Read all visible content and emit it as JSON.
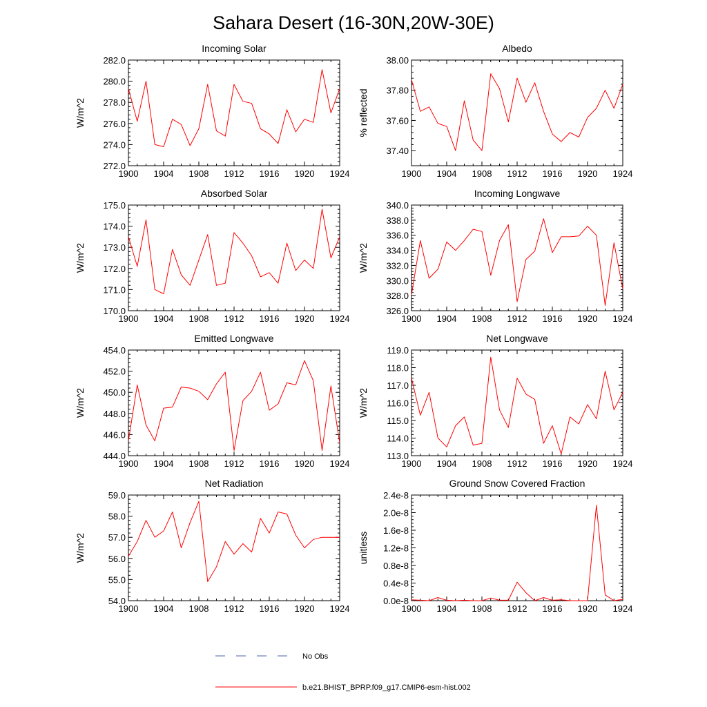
{
  "figure_title": "Sahara Desert (16-30N,20W-30E)",
  "legend": [
    {
      "label": "No Obs",
      "color": "#4a5fa8",
      "style": "dashed"
    },
    {
      "label": "b.e21.BHIST_BPRP.f09_g17.CMIP6-esm-hist.002",
      "color": "#ff0000",
      "style": "solid"
    }
  ],
  "colors": {
    "series": "#ff0000",
    "axis": "#000000"
  },
  "chart_data": [
    {
      "type": "line",
      "title": "Incoming Solar",
      "ylabel": "W/m^2",
      "xlim": [
        1900,
        1924
      ],
      "ylim": [
        272,
        282
      ],
      "x_ticks": [
        1900,
        1904,
        1908,
        1912,
        1916,
        1920,
        1924
      ],
      "x_tick_labels": [
        "1900",
        "1904",
        "1908",
        "1912",
        "1916",
        "1920",
        "1924"
      ],
      "y_ticks": [
        272,
        274,
        276,
        278,
        280,
        282
      ],
      "y_tick_labels": [
        "272.0",
        "274.0",
        "276.0",
        "278.0",
        "280.0",
        "282.0"
      ],
      "x": [
        1900,
        1901,
        1902,
        1903,
        1904,
        1905,
        1906,
        1907,
        1908,
        1909,
        1910,
        1911,
        1912,
        1913,
        1914,
        1915,
        1916,
        1917,
        1918,
        1919,
        1920,
        1921,
        1922,
        1923,
        1924
      ],
      "series": [
        {
          "name": "b.e21.BHIST_BPRP.f09_g17.CMIP6-esm-hist.002",
          "values": [
            279.3,
            276.2,
            280.0,
            274.0,
            273.8,
            276.4,
            275.9,
            273.9,
            275.5,
            279.7,
            275.3,
            274.8,
            279.7,
            278.1,
            277.9,
            275.5,
            275.0,
            274.1,
            277.3,
            275.2,
            276.4,
            276.1,
            281.1,
            277.0,
            279.3
          ]
        }
      ]
    },
    {
      "type": "line",
      "title": "Albedo",
      "ylabel": "% reflected",
      "xlim": [
        1900,
        1924
      ],
      "ylim": [
        37.3,
        38.0
      ],
      "x_ticks": [
        1900,
        1904,
        1908,
        1912,
        1916,
        1920,
        1924
      ],
      "x_tick_labels": [
        "1900",
        "1904",
        "1908",
        "1912",
        "1916",
        "1920",
        "1924"
      ],
      "y_ticks": [
        37.4,
        37.6,
        37.8,
        38.0
      ],
      "y_tick_labels": [
        "37.40",
        "37.60",
        "37.80",
        "38.00"
      ],
      "x": [
        1900,
        1901,
        1902,
        1903,
        1904,
        1905,
        1906,
        1907,
        1908,
        1909,
        1910,
        1911,
        1912,
        1913,
        1914,
        1915,
        1916,
        1917,
        1918,
        1919,
        1920,
        1921,
        1922,
        1923,
        1924
      ],
      "series": [
        {
          "name": "b.e21.BHIST_BPRP.f09_g17.CMIP6-esm-hist.002",
          "values": [
            37.87,
            37.66,
            37.69,
            37.58,
            37.56,
            37.4,
            37.73,
            37.47,
            37.4,
            37.91,
            37.81,
            37.59,
            37.88,
            37.72,
            37.85,
            37.66,
            37.51,
            37.46,
            37.52,
            37.49,
            37.62,
            37.68,
            37.8,
            37.68,
            37.84
          ]
        }
      ]
    },
    {
      "type": "line",
      "title": "Absorbed Solar",
      "ylabel": "W/m^2",
      "xlim": [
        1900,
        1924
      ],
      "ylim": [
        170,
        175
      ],
      "x_ticks": [
        1900,
        1904,
        1908,
        1912,
        1916,
        1920,
        1924
      ],
      "x_tick_labels": [
        "1900",
        "1904",
        "1908",
        "1912",
        "1916",
        "1920",
        "1924"
      ],
      "y_ticks": [
        170,
        171,
        172,
        173,
        174,
        175
      ],
      "y_tick_labels": [
        "170.0",
        "171.0",
        "172.0",
        "173.0",
        "174.0",
        "175.0"
      ],
      "x": [
        1900,
        1901,
        1902,
        1903,
        1904,
        1905,
        1906,
        1907,
        1908,
        1909,
        1910,
        1911,
        1912,
        1913,
        1914,
        1915,
        1916,
        1917,
        1918,
        1919,
        1920,
        1921,
        1922,
        1923,
        1924
      ],
      "series": [
        {
          "name": "b.e21.BHIST_BPRP.f09_g17.CMIP6-esm-hist.002",
          "values": [
            173.5,
            172.1,
            174.3,
            171.0,
            170.8,
            172.9,
            171.7,
            171.2,
            172.4,
            173.6,
            171.2,
            171.3,
            173.7,
            173.2,
            172.6,
            171.6,
            171.8,
            171.3,
            173.2,
            171.9,
            172.4,
            172.0,
            174.8,
            172.5,
            173.5
          ]
        }
      ]
    },
    {
      "type": "line",
      "title": "Incoming Longwave",
      "ylabel": "W/m^2",
      "xlim": [
        1900,
        1924
      ],
      "ylim": [
        326,
        340
      ],
      "x_ticks": [
        1900,
        1904,
        1908,
        1912,
        1916,
        1920,
        1924
      ],
      "x_tick_labels": [
        "1900",
        "1904",
        "1908",
        "1912",
        "1916",
        "1920",
        "1924"
      ],
      "y_ticks": [
        326,
        328,
        330,
        332,
        334,
        336,
        338,
        340
      ],
      "y_tick_labels": [
        "326.0",
        "328.0",
        "330.0",
        "332.0",
        "334.0",
        "336.0",
        "338.0",
        "340.0"
      ],
      "x": [
        1900,
        1901,
        1902,
        1903,
        1904,
        1905,
        1906,
        1907,
        1908,
        1909,
        1910,
        1911,
        1912,
        1913,
        1914,
        1915,
        1916,
        1917,
        1918,
        1919,
        1920,
        1921,
        1922,
        1923,
        1924
      ],
      "series": [
        {
          "name": "b.e21.BHIST_BPRP.f09_g17.CMIP6-esm-hist.002",
          "values": [
            328.1,
            335.3,
            330.3,
            331.5,
            335.1,
            334.0,
            335.3,
            336.8,
            336.5,
            330.7,
            335.3,
            337.4,
            327.2,
            332.8,
            333.9,
            338.2,
            333.7,
            335.8,
            335.8,
            335.9,
            337.2,
            336.0,
            326.7,
            335.0,
            328.9
          ]
        }
      ]
    },
    {
      "type": "line",
      "title": "Emitted Longwave",
      "ylabel": "W/m^2",
      "xlim": [
        1900,
        1924
      ],
      "ylim": [
        444,
        454
      ],
      "x_ticks": [
        1900,
        1904,
        1908,
        1912,
        1916,
        1920,
        1924
      ],
      "x_tick_labels": [
        "1900",
        "1904",
        "1908",
        "1912",
        "1916",
        "1920",
        "1924"
      ],
      "y_ticks": [
        444,
        446,
        448,
        450,
        452,
        454
      ],
      "y_tick_labels": [
        "444.0",
        "446.0",
        "448.0",
        "450.0",
        "452.0",
        "454.0"
      ],
      "x": [
        1900,
        1901,
        1902,
        1903,
        1904,
        1905,
        1906,
        1907,
        1908,
        1909,
        1910,
        1911,
        1912,
        1913,
        1914,
        1915,
        1916,
        1917,
        1918,
        1919,
        1920,
        1921,
        1922,
        1923,
        1924
      ],
      "series": [
        {
          "name": "b.e21.BHIST_BPRP.f09_g17.CMIP6-esm-hist.002",
          "values": [
            445.4,
            450.7,
            446.9,
            445.4,
            448.5,
            448.6,
            450.5,
            450.4,
            450.1,
            449.3,
            450.8,
            451.9,
            444.5,
            449.2,
            450.1,
            451.9,
            448.3,
            448.9,
            450.9,
            450.7,
            453.0,
            451.1,
            444.5,
            450.6,
            445.2
          ]
        }
      ]
    },
    {
      "type": "line",
      "title": "Net Longwave",
      "ylabel": "W/m^2",
      "xlim": [
        1900,
        1924
      ],
      "ylim": [
        113,
        119
      ],
      "x_ticks": [
        1900,
        1904,
        1908,
        1912,
        1916,
        1920,
        1924
      ],
      "x_tick_labels": [
        "1900",
        "1904",
        "1908",
        "1912",
        "1916",
        "1920",
        "1924"
      ],
      "y_ticks": [
        113,
        114,
        115,
        116,
        117,
        118,
        119
      ],
      "y_tick_labels": [
        "113.0",
        "114.0",
        "115.0",
        "116.0",
        "117.0",
        "118.0",
        "119.0"
      ],
      "x": [
        1900,
        1901,
        1902,
        1903,
        1904,
        1905,
        1906,
        1907,
        1908,
        1909,
        1910,
        1911,
        1912,
        1913,
        1914,
        1915,
        1916,
        1917,
        1918,
        1919,
        1920,
        1921,
        1922,
        1923,
        1924
      ],
      "series": [
        {
          "name": "b.e21.BHIST_BPRP.f09_g17.CMIP6-esm-hist.002",
          "values": [
            117.4,
            115.3,
            116.6,
            114.0,
            113.5,
            114.7,
            115.2,
            113.6,
            113.7,
            118.6,
            115.6,
            114.6,
            117.4,
            116.5,
            116.2,
            113.7,
            114.7,
            113.1,
            115.2,
            114.8,
            115.9,
            115.1,
            117.8,
            115.6,
            116.6
          ]
        }
      ]
    },
    {
      "type": "line",
      "title": "Net Radiation",
      "ylabel": "W/m^2",
      "xlim": [
        1900,
        1924
      ],
      "ylim": [
        54,
        59
      ],
      "x_ticks": [
        1900,
        1904,
        1908,
        1912,
        1916,
        1920,
        1924
      ],
      "x_tick_labels": [
        "1900",
        "1904",
        "1908",
        "1912",
        "1916",
        "1920",
        "1924"
      ],
      "y_ticks": [
        54,
        55,
        56,
        57,
        58,
        59
      ],
      "y_tick_labels": [
        "54.0",
        "55.0",
        "56.0",
        "57.0",
        "58.0",
        "59.0"
      ],
      "x": [
        1900,
        1901,
        1902,
        1903,
        1904,
        1905,
        1906,
        1907,
        1908,
        1909,
        1910,
        1911,
        1912,
        1913,
        1914,
        1915,
        1916,
        1917,
        1918,
        1919,
        1920,
        1921,
        1922,
        1923,
        1924
      ],
      "series": [
        {
          "name": "b.e21.BHIST_BPRP.f09_g17.CMIP6-esm-hist.002",
          "values": [
            56.1,
            56.8,
            57.8,
            57.0,
            57.3,
            58.2,
            56.5,
            57.7,
            58.7,
            54.9,
            55.6,
            56.8,
            56.2,
            56.7,
            56.3,
            57.9,
            57.2,
            58.2,
            58.1,
            57.1,
            56.5,
            56.9,
            57.0,
            57.0,
            57.0
          ]
        }
      ]
    },
    {
      "type": "line",
      "title": "Ground Snow Covered Fraction",
      "ylabel": "unitless",
      "xlim": [
        1900,
        1924
      ],
      "ylim": [
        0,
        2.4e-08
      ],
      "x_ticks": [
        1900,
        1904,
        1908,
        1912,
        1916,
        1920,
        1924
      ],
      "x_tick_labels": [
        "1900",
        "1904",
        "1908",
        "1912",
        "1916",
        "1920",
        "1924"
      ],
      "y_ticks": [
        0,
        4e-09,
        8e-09,
        1.2e-08,
        1.6e-08,
        2e-08,
        2.4e-08
      ],
      "y_tick_labels": [
        "0.0e-8",
        "0.4e-8",
        "0.8e-8",
        "1.2e-8",
        "1.6e-8",
        "2.0e-8",
        "2.4e-8"
      ],
      "x": [
        1900,
        1901,
        1902,
        1903,
        1904,
        1905,
        1906,
        1907,
        1908,
        1909,
        1910,
        1911,
        1912,
        1913,
        1914,
        1915,
        1916,
        1917,
        1918,
        1919,
        1920,
        1921,
        1922,
        1923,
        1924
      ],
      "series": [
        {
          "name": "b.e21.BHIST_BPRP.f09_g17.CMIP6-esm-hist.002",
          "values": [
            2e-10,
            1e-10,
            0,
            7e-10,
            1e-10,
            0,
            1e-10,
            0,
            0,
            6e-10,
            1e-10,
            1e-10,
            4.2e-09,
            1.8e-09,
            0,
            7e-10,
            1e-10,
            2e-10,
            0,
            0,
            0,
            2.17e-08,
            1.3e-09,
            0,
            3e-10
          ]
        }
      ]
    }
  ]
}
